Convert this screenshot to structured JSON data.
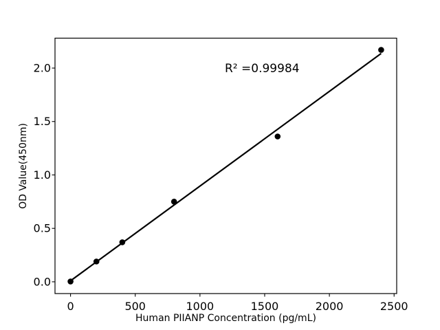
{
  "figure": {
    "background_color": "#ffffff",
    "foreground_color": "#000000"
  },
  "chart_data": {
    "type": "scatter",
    "title": "",
    "xlabel": "Human PIIANP Concentration (pg/mL)",
    "ylabel": "OD Value(450nm)",
    "x": [
      0,
      200,
      400,
      800,
      1600,
      2400
    ],
    "y": [
      0.003,
      0.19,
      0.37,
      0.75,
      1.36,
      2.17
    ],
    "annotation": {
      "text": "R² =0.99984"
    },
    "r_squared": 0.99984,
    "xlim": [
      -120,
      2520
    ],
    "ylim": [
      -0.11,
      2.28
    ],
    "x_ticks": [
      0,
      500,
      1000,
      1500,
      2000,
      2500
    ],
    "x_tick_labels": [
      "0",
      "500",
      "1000",
      "1500",
      "2000",
      "2500"
    ],
    "y_ticks": [
      0.0,
      0.5,
      1.0,
      1.5,
      2.0
    ],
    "y_tick_labels": [
      "0.0",
      "0.5",
      "1.0",
      "1.5",
      "2.0"
    ],
    "grid": false,
    "legend": null,
    "trendline": {
      "kind": "linear_fit",
      "color": "#000000"
    },
    "marker": {
      "shape": "circle",
      "color": "#000000"
    },
    "line_color": "#000000",
    "marker_color": "#000000"
  }
}
